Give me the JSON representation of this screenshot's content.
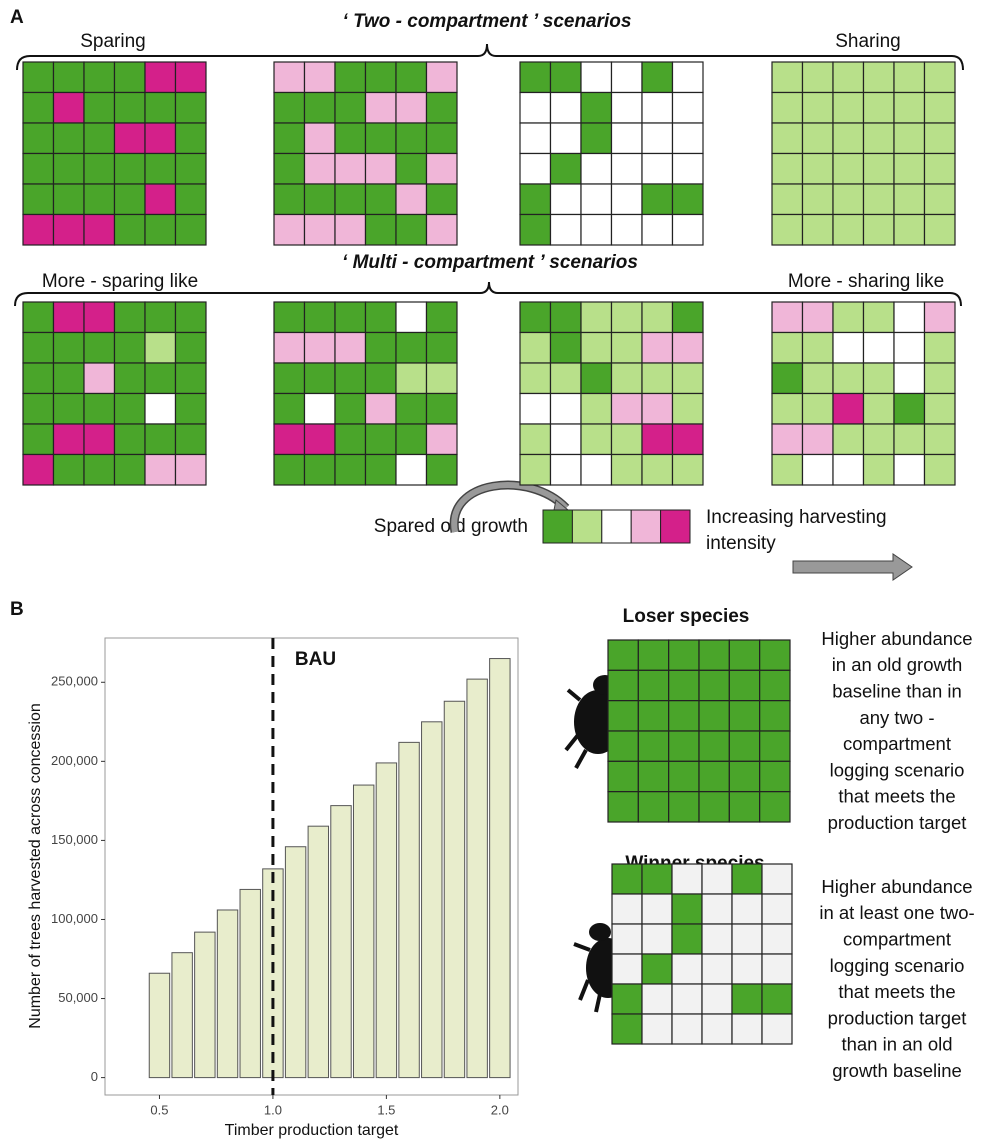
{
  "panel_a": {
    "label": "A",
    "two_compartment": {
      "title": "‘ Two - compartment ’ scenarios",
      "left": "Sparing",
      "right": "Sharing"
    },
    "multi_compartment": {
      "title": "‘ Multi - compartment ’ scenarios",
      "left": "More - sparing like",
      "right": "More - sharing like"
    },
    "legend": {
      "left": "Spared old growth",
      "right": [
        "Increasing harvesting",
        "intensity"
      ]
    }
  },
  "chart_data": {
    "type": "bar",
    "label": "B",
    "xlabel": "Timber production target",
    "ylabel": "Number of trees harvested across concession",
    "x": [
      0.5,
      0.6,
      0.7,
      0.8,
      0.9,
      1.0,
      1.1,
      1.2,
      1.3,
      1.4,
      1.5,
      1.6,
      1.7,
      1.8,
      1.9,
      2.0
    ],
    "values": [
      66000,
      79000,
      92000,
      106000,
      119000,
      132000,
      146000,
      159000,
      172000,
      185000,
      199000,
      212000,
      225000,
      238000,
      252000,
      265000
    ],
    "color": "#e8edcc",
    "xlim": [
      0.26,
      2.08
    ],
    "ylim": [
      -11000,
      278000
    ],
    "xticks": [
      0.5,
      {
        "value": 1.0,
        "label": "1.0"
      },
      1.5,
      {
        "value": 2.0,
        "label": "2.0"
      }
    ],
    "yticks": [
      0,
      {
        "value": 50000,
        "label": "50,000"
      },
      {
        "value": 100000,
        "label": "100,000"
      },
      {
        "value": 150000,
        "label": "150,000"
      },
      {
        "value": 200000,
        "label": "200,000"
      },
      {
        "value": 250000,
        "label": "250,000"
      }
    ],
    "grid": false,
    "vline": 1.0,
    "annotation": "BAU"
  },
  "panel_b": {
    "loser": {
      "title": "Loser species",
      "description": [
        "Higher abundance",
        "in an old growth",
        "baseline than in",
        "any two -",
        "compartment",
        "logging scenario",
        "that meets the",
        "production target"
      ]
    },
    "winner": {
      "title": "Winner species",
      "description": [
        "Higher abundance",
        "in at least one two-",
        "compartment",
        "logging scenario",
        "that meets the",
        "production target",
        "than in an old",
        "growth baseline"
      ]
    }
  }
}
